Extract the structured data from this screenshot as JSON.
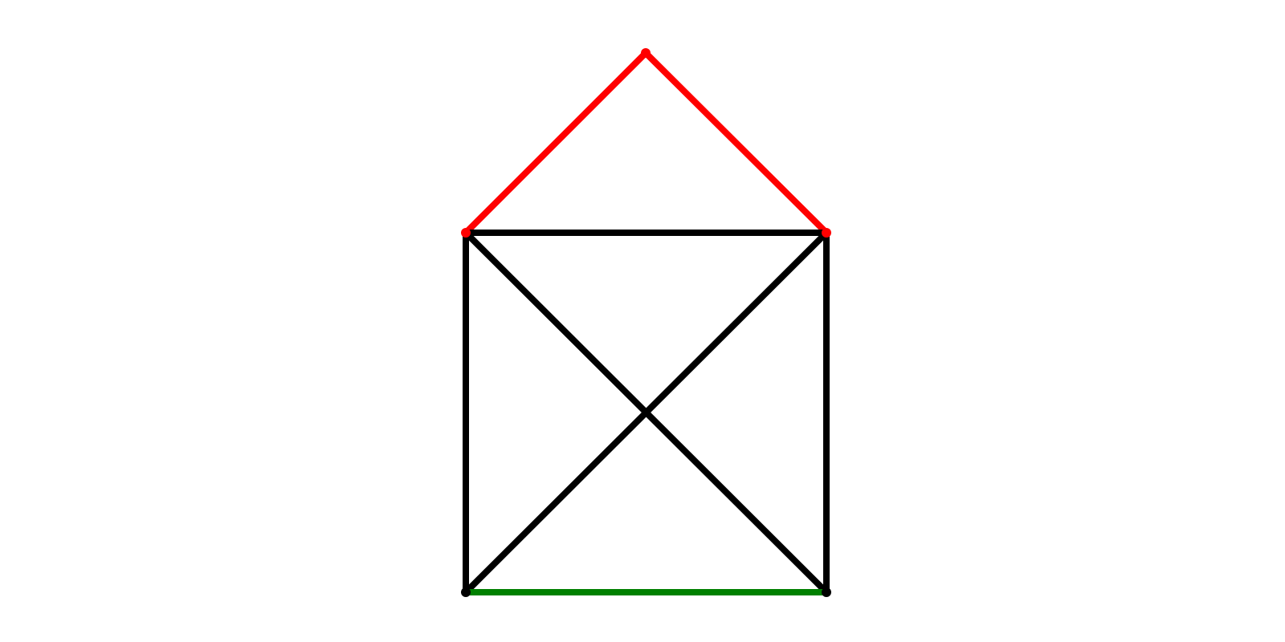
{
  "diagram": {
    "type": "graph",
    "background": "#ffffff",
    "colors": {
      "roof": "#ff0000",
      "walls": "#000000",
      "base": "#008000"
    },
    "nodes": [
      {
        "id": "apex",
        "color": "#ff0000"
      },
      {
        "id": "top-left",
        "color": "#ff0000"
      },
      {
        "id": "top-right",
        "color": "#ff0000"
      },
      {
        "id": "bottom-left",
        "color": "#000000"
      },
      {
        "id": "bottom-right",
        "color": "#000000"
      }
    ],
    "edges": [
      {
        "from": "top-left",
        "to": "apex",
        "color": "#ff0000",
        "role": "roof-left"
      },
      {
        "from": "apex",
        "to": "top-right",
        "color": "#ff0000",
        "role": "roof-right"
      },
      {
        "from": "top-left",
        "to": "top-right",
        "color": "#000000",
        "role": "top-beam"
      },
      {
        "from": "top-left",
        "to": "bottom-left",
        "color": "#000000",
        "role": "left-wall"
      },
      {
        "from": "top-right",
        "to": "bottom-right",
        "color": "#000000",
        "role": "right-wall"
      },
      {
        "from": "top-left",
        "to": "bottom-right",
        "color": "#000000",
        "role": "diagonal-down"
      },
      {
        "from": "top-right",
        "to": "bottom-left",
        "color": "#000000",
        "role": "diagonal-up"
      },
      {
        "from": "bottom-left",
        "to": "bottom-right",
        "color": "#008000",
        "role": "base"
      }
    ]
  }
}
